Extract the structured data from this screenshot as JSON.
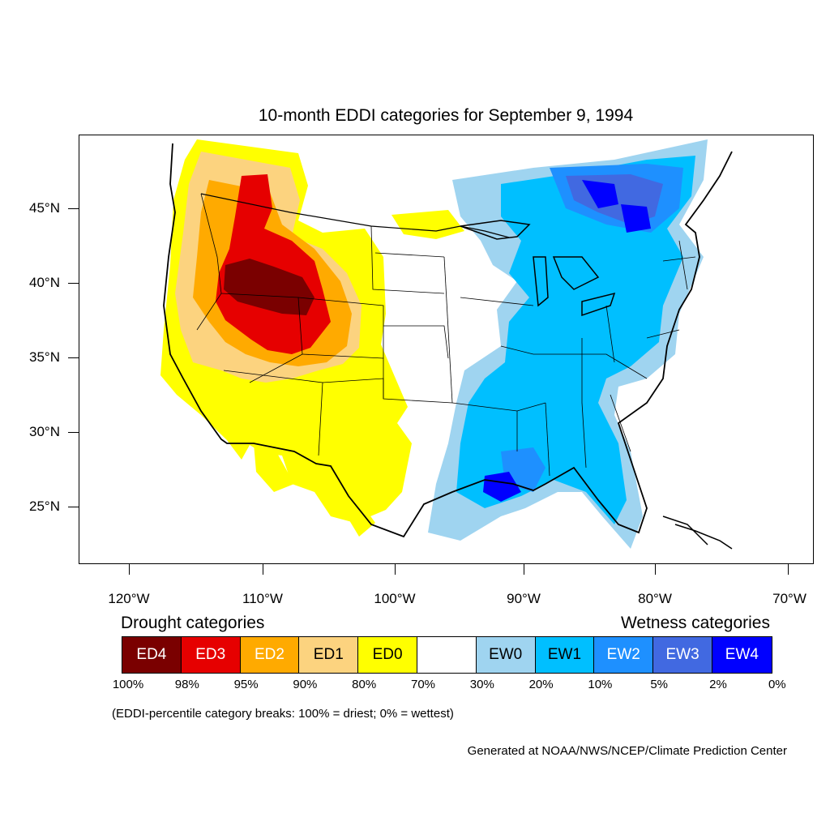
{
  "title": "10-month EDDI categories for September 9, 1994",
  "y_axis": {
    "ticks": [
      "45°N",
      "40°N",
      "35°N",
      "30°N",
      "25°N"
    ]
  },
  "x_axis": {
    "ticks": [
      "120°W",
      "110°W",
      "100°W",
      "90°W",
      "80°W",
      "70°W"
    ]
  },
  "legend": {
    "drought_heading": "Drought categories",
    "wetness_heading": "Wetness categories",
    "categories": [
      {
        "label": "ED4",
        "color": "#7a0000",
        "text_color": "#ffffff"
      },
      {
        "label": "ED3",
        "color": "#e60000",
        "text_color": "#ffffff"
      },
      {
        "label": "ED2",
        "color": "#ffaa00",
        "text_color": "#ffffff"
      },
      {
        "label": "ED1",
        "color": "#fcd37f",
        "text_color": "#000000"
      },
      {
        "label": "ED0",
        "color": "#ffff00",
        "text_color": "#000000"
      },
      {
        "label": "",
        "color": "#ffffff",
        "text_color": "#000000"
      },
      {
        "label": "EW0",
        "color": "#9fd4f0",
        "text_color": "#000000"
      },
      {
        "label": "EW1",
        "color": "#00bfff",
        "text_color": "#000000"
      },
      {
        "label": "EW2",
        "color": "#1e90ff",
        "text_color": "#ffffff"
      },
      {
        "label": "EW3",
        "color": "#4169e1",
        "text_color": "#ffffff"
      },
      {
        "label": "EW4",
        "color": "#0000ff",
        "text_color": "#ffffff"
      }
    ],
    "breaks": [
      "100%",
      "98%",
      "95%",
      "90%",
      "80%",
      "70%",
      "30%",
      "20%",
      "10%",
      "5%",
      "2%",
      "0%"
    ],
    "note": "(EDDI-percentile category breaks: 100% = driest; 0% = wettest)"
  },
  "credit": "Generated at NOAA/NWS/NCEP/Climate Prediction Center"
}
